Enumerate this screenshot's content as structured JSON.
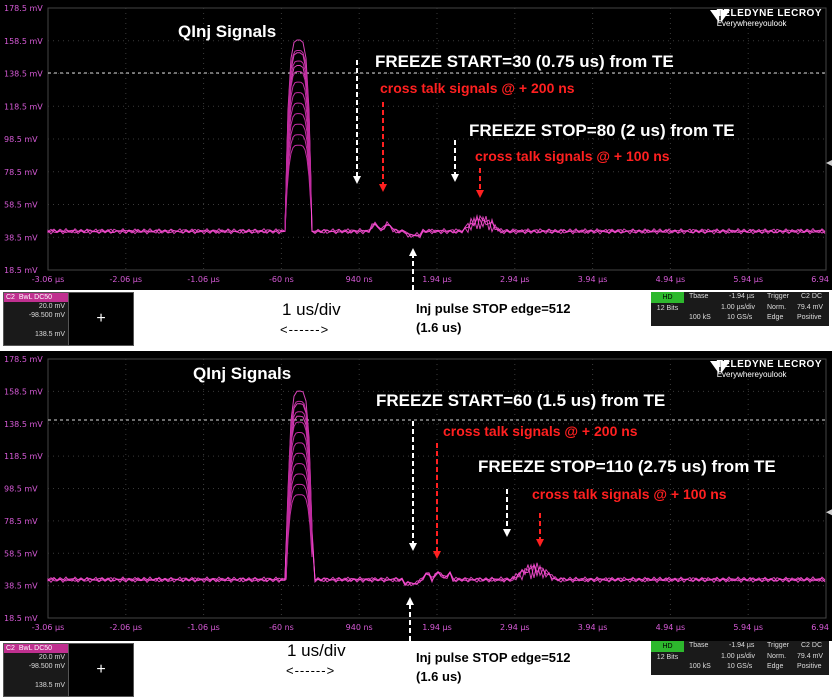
{
  "panels": [
    {
      "title": "QInj Signals",
      "y_labels": [
        "178.5 mV",
        "158.5 mV",
        "138.5 mV",
        "118.5 mV",
        "98.5 mV",
        "78.5 mV",
        "58.5 mV",
        "38.5 mV",
        "18.5 mV"
      ],
      "x_labels": [
        "-3.06 µs",
        "-2.06 µs",
        "-1.06 µs",
        "-60 ns",
        "940 ns",
        "1.94 µs",
        "2.94 µs",
        "3.94 µs",
        "4.94 µs",
        "5.94 µs",
        "6.94 µs"
      ],
      "freeze_start": "FREEZE START=30 (0.75 us) from TE",
      "cross_talk_1": "cross talk signals @ + 200 ns",
      "freeze_stop": "FREEZE STOP=80 (2 us) from TE",
      "cross_talk_2": "cross talk signals @ + 100 ns",
      "div_label": "1 us/div",
      "div_arrow": "<------>",
      "inj_line1": "Inj pulse STOP edge=512",
      "inj_line2": "(1.6 us)",
      "channel": {
        "name": "C2",
        "mode": "BwL DC50",
        "v1": "20.0 mV",
        "v2": "-98.500 mV",
        "v3": "138.5 mV"
      },
      "zoom_symbol": "+",
      "status": {
        "hd": "HD",
        "bits": "12 Bits",
        "tbase_label": "Tbase",
        "tbase_val": "-1.94 µs",
        "div": "1.00 µs/div",
        "ks": "100 kS",
        "gs": "10 GS/s",
        "trigger_label": "Trigger",
        "trig_ch": "C2 DC",
        "norm": "Norm.",
        "lvl": "79.4 mV",
        "edge": "Edge",
        "pos": "Positive"
      }
    },
    {
      "title": "QInj Signals",
      "y_labels": [
        "178.5 mV",
        "158.5 mV",
        "138.5 mV",
        "118.5 mV",
        "98.5 mV",
        "78.5 mV",
        "58.5 mV",
        "38.5 mV",
        "18.5 mV"
      ],
      "x_labels": [
        "-3.06 µs",
        "-2.06 µs",
        "-1.06 µs",
        "-60 ns",
        "940 ns",
        "1.94 µs",
        "2.94 µs",
        "3.94 µs",
        "4.94 µs",
        "5.94 µs",
        "6.94 µs"
      ],
      "freeze_start": "FREEZE START=60 (1.5 us) from TE",
      "cross_talk_1": "cross talk signals @ + 200 ns",
      "freeze_stop": "FREEZE STOP=110 (2.75 us) from TE",
      "cross_talk_2": "cross talk signals @ + 100 ns",
      "div_label": "1 us/div",
      "div_arrow": "<------>",
      "inj_line1": "Inj pulse STOP edge=512",
      "inj_line2": "(1.6 us)",
      "channel": {
        "name": "C2",
        "mode": "BwL DC50",
        "v1": "20.0 mV",
        "v2": "-98.500 mV",
        "v3": "138.5 mV"
      },
      "zoom_symbol": "+",
      "status": {
        "hd": "HD",
        "bits": "12 Bits",
        "tbase_label": "Tbase",
        "tbase_val": "-1.94 µs",
        "div": "1.00 µs/div",
        "ks": "100 kS",
        "gs": "10 GS/s",
        "trigger_label": "Trigger",
        "trig_ch": "C2 DC",
        "norm": "Norm.",
        "lvl": "79.4 mV",
        "edge": "Edge",
        "pos": "Positive"
      }
    }
  ],
  "logo": {
    "brand": "TELEDYNE LECROY",
    "tagline": "Everywhereyoulook"
  },
  "colors": {
    "trace": "#ff4fd8",
    "grid": "#3a3a3a",
    "axis_label": "#d65ad6",
    "annotation_red": "#ff2020",
    "hd_green": "#2db82d"
  }
}
